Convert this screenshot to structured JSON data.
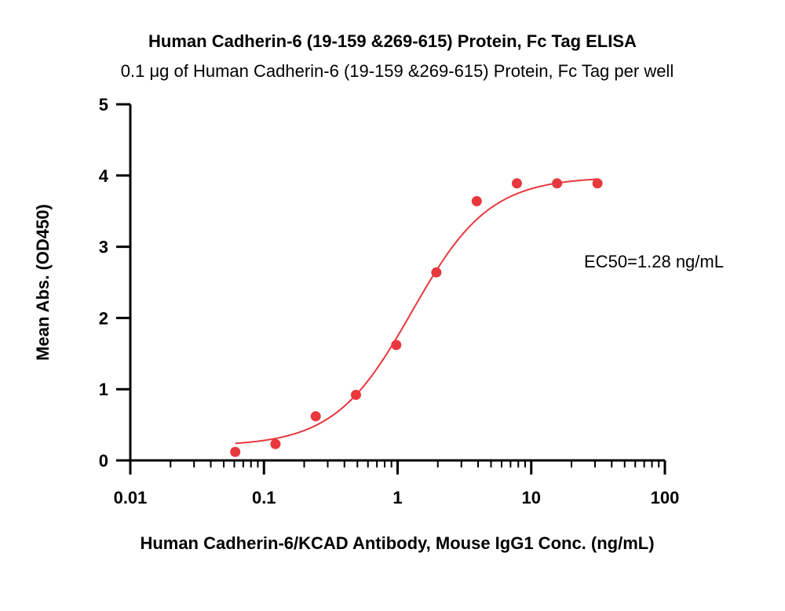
{
  "chart_data": {
    "type": "scatter",
    "title": "Human Cadherin-6 (19-159  &269-615) Protein, Fc Tag ELISA",
    "subtitle": "0.1 μg of Human Cadherin-6 (19-159  &269-615) Protein, Fc Tag per well",
    "xlabel": "Human Cadherin-6/KCAD Antibody, Mouse IgG1 Conc. (ng/mL)",
    "ylabel": "Mean Abs. (OD450)",
    "x_scale": "log",
    "xlim": [
      0.01,
      100
    ],
    "ylim": [
      0,
      5
    ],
    "x_ticks": [
      0.01,
      0.1,
      1,
      10,
      100
    ],
    "x_tick_labels": [
      "0.01",
      "0.1",
      "1",
      "10",
      "100"
    ],
    "y_ticks": [
      0,
      1,
      2,
      3,
      4,
      5
    ],
    "y_tick_labels": [
      "0",
      "1",
      "2",
      "3",
      "4",
      "5"
    ],
    "grid": false,
    "color": "#e8383d",
    "series": [
      {
        "x": [
          0.061,
          0.122,
          0.244,
          0.488,
          0.977,
          1.95,
          3.91,
          7.81,
          15.6,
          31.3
        ],
        "y": [
          0.12,
          0.23,
          0.62,
          0.92,
          1.62,
          2.64,
          3.64,
          3.89,
          3.89,
          3.89
        ]
      }
    ],
    "fit": {
      "model": "4PL",
      "bottom": 0.2,
      "top": 3.98,
      "ec50": 1.28,
      "hill": 1.5,
      "x_range": [
        0.061,
        31.3
      ]
    },
    "annotation": "EC50=1.28 ng/mL"
  }
}
